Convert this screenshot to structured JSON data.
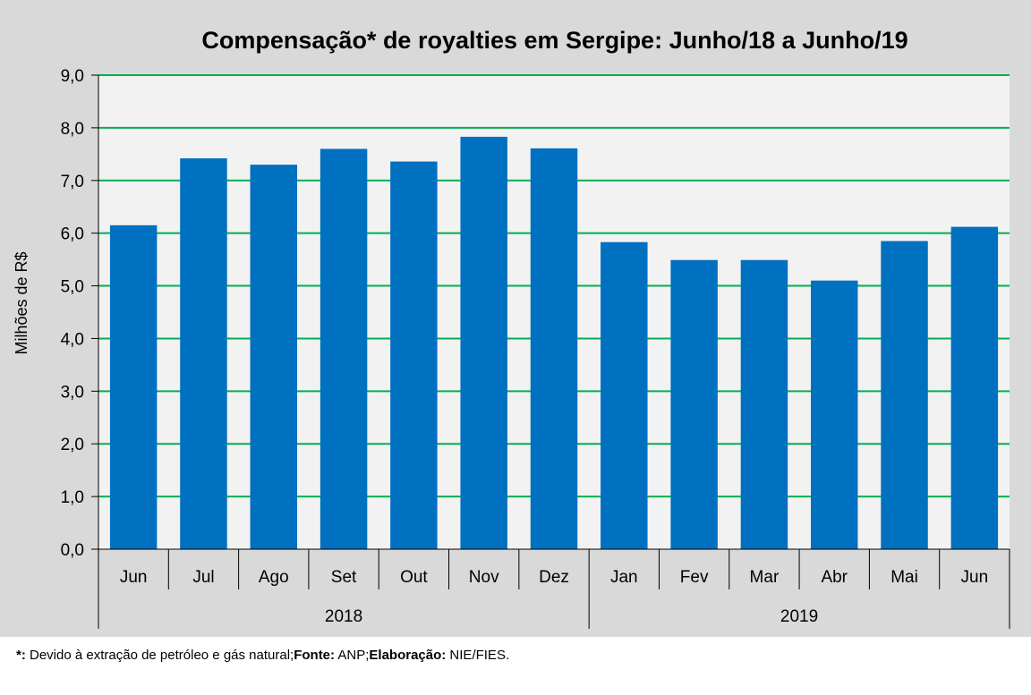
{
  "chart_data": {
    "type": "bar",
    "title": "Compensação* de royalties em Sergipe:  Junho/18 a Junho/19",
    "ylabel": "Milhões de R$",
    "xlabel": "",
    "ylim": [
      0,
      9
    ],
    "yticks": [
      "0,0",
      "1,0",
      "2,0",
      "3,0",
      "4,0",
      "5,0",
      "6,0",
      "7,0",
      "8,0",
      "9,0"
    ],
    "categories": [
      "Jun",
      "Jul",
      "Ago",
      "Set",
      "Out",
      "Nov",
      "Dez",
      "Jan",
      "Fev",
      "Mar",
      "Abr",
      "Mai",
      "Jun"
    ],
    "groups": [
      {
        "label": "2018",
        "count": 7
      },
      {
        "label": "2019",
        "count": 6
      }
    ],
    "values": [
      6.15,
      7.42,
      7.3,
      7.6,
      7.36,
      7.83,
      7.61,
      5.83,
      5.49,
      5.49,
      5.1,
      5.85,
      6.12
    ],
    "grid": true,
    "colors": {
      "bar": "#0070c0",
      "grid": "#00b050",
      "plot_bg": "#f2f2f2",
      "chart_bg": "#d9d9d9"
    }
  },
  "footnote": {
    "marker": "*:",
    "text1": " Devido à extração de petróleo e gás natural;",
    "source_label": "Fonte:",
    "source": " ANP;",
    "prepared_label": "Elaboração:",
    "prepared": " NIE/FIES."
  }
}
